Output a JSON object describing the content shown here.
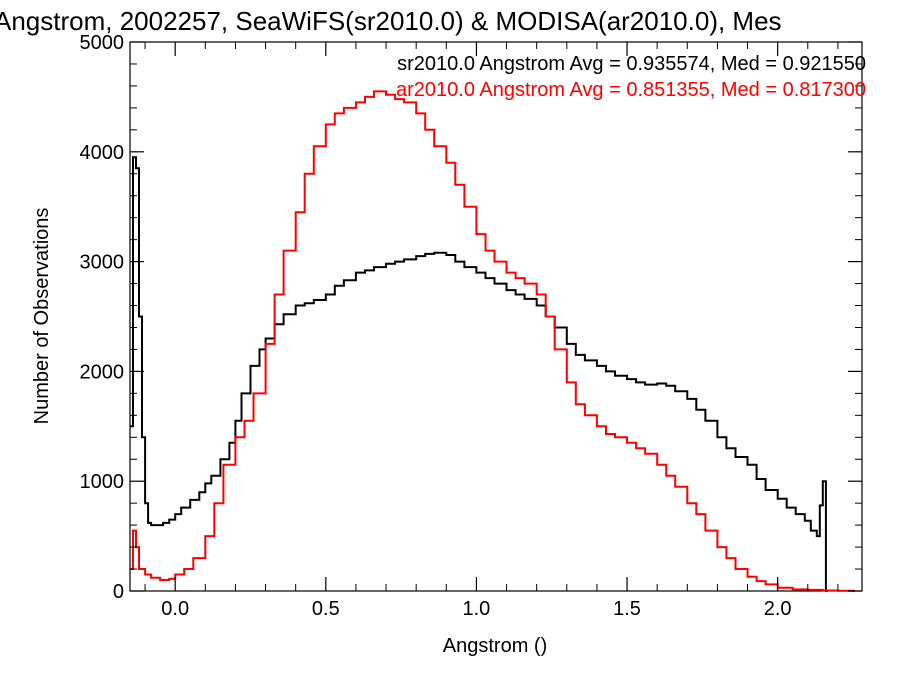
{
  "chart_data": {
    "type": "line",
    "title": "Angstrom, 2002257, SeaWiFS(sr2010.0) & MODISA(ar2010.0), Mes",
    "xlabel": "Angstrom ()",
    "ylabel": "Number of Observations",
    "xlim": [
      -0.15,
      2.28
    ],
    "ylim": [
      0,
      5000
    ],
    "x_ticks": [
      "0.0",
      "0.5",
      "1.0",
      "1.5",
      "2.0"
    ],
    "y_ticks": [
      "0",
      "1000",
      "2000",
      "3000",
      "4000",
      "5000"
    ],
    "x_tick_values": [
      0.0,
      0.5,
      1.0,
      1.5,
      2.0
    ],
    "y_tick_values": [
      0,
      1000,
      2000,
      3000,
      4000,
      5000
    ],
    "grid": false,
    "legend": "top-right",
    "annotations": [
      {
        "text": "sr2010.0 Angstrom Avg = 0.935574, Med = 0.921550",
        "color": "#000000"
      },
      {
        "text": "ar2010.0 Angstrom Avg = 0.851355, Med = 0.817300",
        "color": "#ff0000"
      }
    ],
    "series": [
      {
        "color": "#000000",
        "x": [
          -0.15,
          -0.14,
          -0.13,
          -0.12,
          -0.11,
          -0.1,
          -0.09,
          -0.08,
          -0.06,
          -0.04,
          -0.02,
          0.0,
          0.02,
          0.05,
          0.08,
          0.1,
          0.12,
          0.15,
          0.18,
          0.2,
          0.22,
          0.25,
          0.28,
          0.3,
          0.33,
          0.36,
          0.4,
          0.43,
          0.46,
          0.5,
          0.53,
          0.56,
          0.6,
          0.63,
          0.66,
          0.7,
          0.73,
          0.76,
          0.8,
          0.83,
          0.86,
          0.9,
          0.93,
          0.96,
          1.0,
          1.03,
          1.06,
          1.1,
          1.13,
          1.16,
          1.2,
          1.23,
          1.26,
          1.3,
          1.33,
          1.36,
          1.4,
          1.43,
          1.46,
          1.5,
          1.53,
          1.56,
          1.6,
          1.63,
          1.66,
          1.7,
          1.73,
          1.76,
          1.8,
          1.83,
          1.86,
          1.9,
          1.93,
          1.96,
          2.0,
          2.03,
          2.06,
          2.09,
          2.11,
          2.13,
          2.14,
          2.15,
          2.16
        ],
        "values": [
          1500,
          3950,
          3850,
          2500,
          1400,
          800,
          620,
          600,
          600,
          620,
          650,
          700,
          760,
          830,
          900,
          980,
          1050,
          1200,
          1350,
          1550,
          1800,
          2050,
          2200,
          2300,
          2430,
          2520,
          2600,
          2620,
          2650,
          2700,
          2780,
          2830,
          2900,
          2920,
          2950,
          2980,
          3000,
          3020,
          3050,
          3070,
          3080,
          3060,
          3000,
          2950,
          2900,
          2850,
          2800,
          2740,
          2700,
          2660,
          2600,
          2500,
          2400,
          2250,
          2150,
          2100,
          2050,
          2000,
          1960,
          1930,
          1900,
          1880,
          1890,
          1870,
          1820,
          1750,
          1650,
          1550,
          1400,
          1300,
          1220,
          1150,
          1020,
          920,
          840,
          760,
          700,
          640,
          550,
          500,
          780,
          1000,
          0
        ]
      },
      {
        "color": "#ff0000",
        "x": [
          -0.15,
          -0.14,
          -0.13,
          -0.12,
          -0.1,
          -0.08,
          -0.05,
          -0.02,
          0.0,
          0.03,
          0.06,
          0.1,
          0.13,
          0.16,
          0.2,
          0.23,
          0.26,
          0.3,
          0.33,
          0.36,
          0.4,
          0.43,
          0.46,
          0.5,
          0.53,
          0.56,
          0.6,
          0.63,
          0.66,
          0.7,
          0.73,
          0.76,
          0.8,
          0.83,
          0.86,
          0.9,
          0.93,
          0.96,
          1.0,
          1.03,
          1.06,
          1.1,
          1.13,
          1.16,
          1.2,
          1.23,
          1.26,
          1.3,
          1.33,
          1.36,
          1.4,
          1.43,
          1.46,
          1.5,
          1.53,
          1.56,
          1.6,
          1.63,
          1.66,
          1.7,
          1.73,
          1.76,
          1.8,
          1.83,
          1.86,
          1.9,
          1.93,
          1.96,
          2.0,
          2.05,
          2.1,
          2.15,
          2.2,
          2.25
        ],
        "values": [
          200,
          550,
          400,
          200,
          150,
          120,
          100,
          110,
          150,
          200,
          300,
          500,
          800,
          1150,
          1400,
          1550,
          1800,
          2250,
          2700,
          3100,
          3450,
          3800,
          4050,
          4250,
          4350,
          4400,
          4450,
          4500,
          4550,
          4520,
          4480,
          4450,
          4350,
          4200,
          4050,
          3900,
          3700,
          3500,
          3250,
          3100,
          3000,
          2900,
          2850,
          2800,
          2700,
          2500,
          2200,
          1900,
          1700,
          1600,
          1500,
          1430,
          1400,
          1350,
          1300,
          1250,
          1150,
          1050,
          950,
          800,
          700,
          550,
          400,
          300,
          200,
          130,
          90,
          60,
          30,
          15,
          10,
          5,
          2,
          0
        ]
      }
    ]
  }
}
